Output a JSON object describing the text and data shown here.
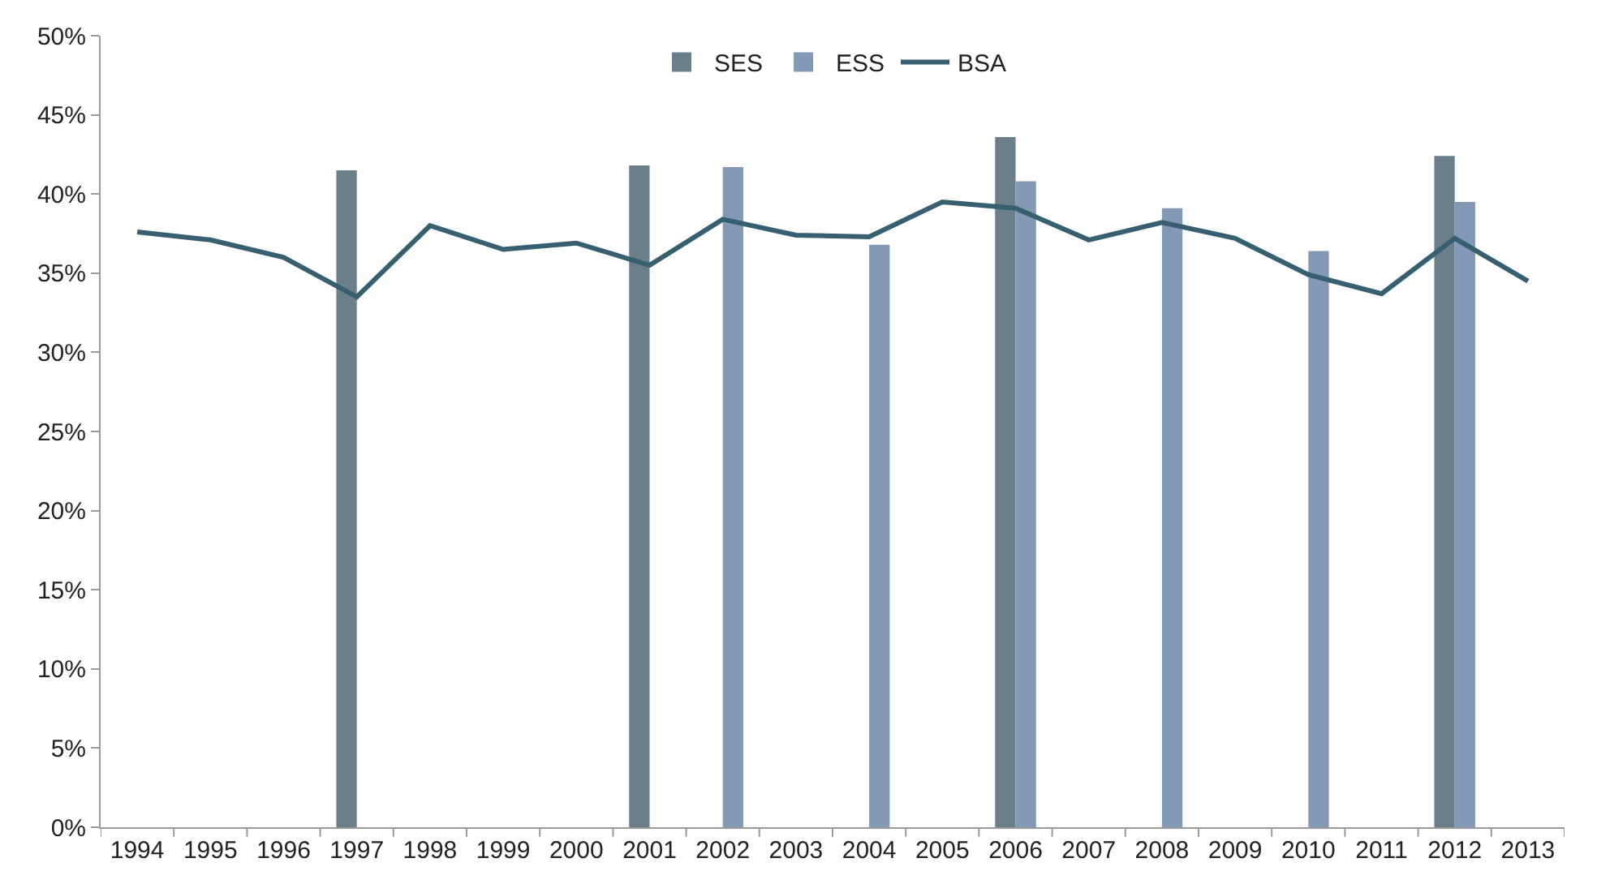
{
  "chart_data": {
    "type": "bar",
    "categories": [
      "1994",
      "1995",
      "1996",
      "1997",
      "1998",
      "1999",
      "2000",
      "2001",
      "2002",
      "2003",
      "2004",
      "2005",
      "2006",
      "2007",
      "2008",
      "2009",
      "2010",
      "2011",
      "2012",
      "2013"
    ],
    "series": [
      {
        "name": "SES",
        "color": "#6b7f8a",
        "values": [
          null,
          null,
          null,
          41.5,
          null,
          null,
          null,
          41.8,
          null,
          null,
          null,
          null,
          43.6,
          null,
          null,
          null,
          null,
          null,
          42.4,
          null
        ]
      },
      {
        "name": "ESS",
        "color": "#8399b5",
        "values": [
          null,
          null,
          null,
          null,
          null,
          null,
          null,
          null,
          41.7,
          null,
          36.8,
          null,
          40.8,
          null,
          39.1,
          null,
          36.4,
          null,
          39.5,
          null
        ]
      },
      {
        "name": "BSA",
        "type": "line",
        "color": "#365f6f",
        "values": [
          37.6,
          37.1,
          36.0,
          33.5,
          38.0,
          36.5,
          36.9,
          35.5,
          38.4,
          37.4,
          37.3,
          39.5,
          39.1,
          37.1,
          38.2,
          37.2,
          34.9,
          33.7,
          37.2,
          34.5
        ]
      }
    ],
    "ylim": [
      0,
      50
    ],
    "yticks": [
      {
        "value": 0,
        "label": "0%"
      },
      {
        "value": 5,
        "label": "5%"
      },
      {
        "value": 10,
        "label": "10%"
      },
      {
        "value": 15,
        "label": "15%"
      },
      {
        "value": 20,
        "label": "20%"
      },
      {
        "value": 25,
        "label": "25%"
      },
      {
        "value": 30,
        "label": "30%"
      },
      {
        "value": 35,
        "label": "35%"
      },
      {
        "value": 40,
        "label": "40%"
      },
      {
        "value": 45,
        "label": "45%"
      },
      {
        "value": 50,
        "label": "50%"
      }
    ],
    "legend": "top",
    "line_style": "solid",
    "marker": "none"
  }
}
